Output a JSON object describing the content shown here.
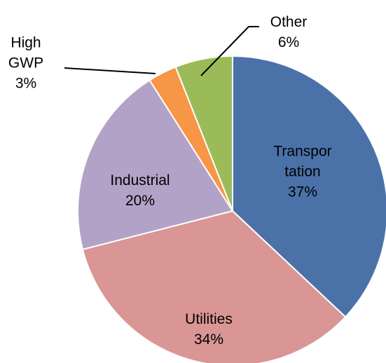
{
  "chart_data": {
    "type": "pie",
    "categories": [
      "Transpor\ntation",
      "Utilities",
      "Industrial",
      "High\nGWP",
      "Other"
    ],
    "values": [
      37,
      34,
      20,
      3,
      6
    ],
    "value_labels": [
      "37%",
      "34%",
      "20%",
      "3%",
      "6%"
    ],
    "colors": [
      "#4a72a8",
      "#d99694",
      "#b3a2c7",
      "#f79646",
      "#9bbb59"
    ]
  }
}
